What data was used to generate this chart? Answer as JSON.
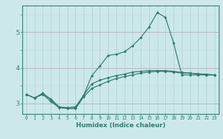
{
  "xlabel": "Humidex (Indice chaleur)",
  "x": [
    0,
    1,
    2,
    3,
    4,
    5,
    6,
    7,
    8,
    9,
    10,
    11,
    12,
    13,
    14,
    15,
    16,
    17,
    18,
    19,
    20,
    21,
    22,
    23
  ],
  "line1": [
    3.25,
    3.15,
    3.25,
    3.05,
    2.88,
    2.85,
    2.85,
    3.18,
    3.42,
    3.52,
    3.62,
    3.7,
    3.75,
    3.8,
    3.85,
    3.88,
    3.9,
    3.9,
    3.88,
    3.85,
    3.85,
    3.82,
    3.8,
    3.8
  ],
  "line2": [
    3.25,
    3.15,
    3.28,
    3.1,
    2.88,
    2.88,
    2.88,
    3.22,
    3.78,
    4.05,
    4.35,
    4.38,
    4.45,
    4.62,
    4.85,
    5.15,
    5.55,
    5.42,
    4.7,
    3.8,
    3.8,
    3.8,
    3.8,
    3.8
  ],
  "line3": [
    3.25,
    3.15,
    3.28,
    3.12,
    2.9,
    2.88,
    2.9,
    3.22,
    3.55,
    3.65,
    3.72,
    3.78,
    3.82,
    3.88,
    3.9,
    3.92,
    3.92,
    3.92,
    3.9,
    3.87,
    3.85,
    3.83,
    3.82,
    3.8
  ],
  "line_color": "#2e7d6e",
  "bg_color": "#cce8e8",
  "grid_color_major": "#aacfcf",
  "ylim": [
    2.7,
    5.75
  ],
  "yticks": [
    3,
    4,
    5
  ],
  "xlim": [
    -0.5,
    23.5
  ],
  "red_line_color": "#d08080"
}
